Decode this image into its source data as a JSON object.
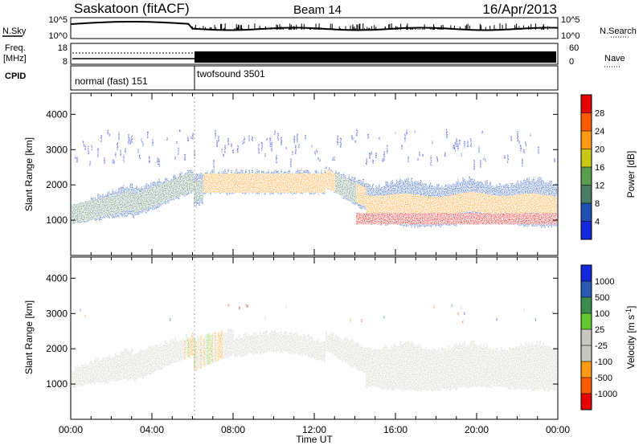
{
  "header": {
    "station": "Saskatoon (fitACF)",
    "beam": "Beam 14",
    "date": "16/Apr/2013"
  },
  "noise_panel": {
    "left_label": "N.Sky",
    "right_label": "N.Search",
    "left_ticks": [
      "10^5",
      "10^0"
    ],
    "right_ticks": [
      "10^5",
      "10^0"
    ]
  },
  "freq_panel": {
    "left_label_1": "Freq.",
    "left_label_2": "[MHz]",
    "right_label": "Nave",
    "left_ticks": [
      "18",
      "8"
    ],
    "right_ticks": [
      "60",
      "0"
    ]
  },
  "cpid_panel": {
    "label": "CPID",
    "modes": [
      {
        "name": "normal (fast) 151",
        "start_hour": 0
      },
      {
        "name": "twofsound 3501",
        "start_hour": 6
      }
    ]
  },
  "colors": {
    "power": [
      "#1428dc",
      "#1e50b4",
      "#4a7c64",
      "#5a9c50",
      "#c8c814",
      "#ff9a14",
      "#ff5a00",
      "#e60000"
    ],
    "velocity": [
      "#1428dc",
      "#2a5ab4",
      "#3c8c50",
      "#64c832",
      "#c8c8c0",
      "#c8c8c0",
      "#ff9a14",
      "#ff5a00",
      "#e60000"
    ],
    "ground_scatter": "#c8c8c0"
  },
  "chart_data": [
    {
      "type": "heatmap",
      "title": "",
      "xlabel": "Time UT",
      "ylabel": "Slant Range [km]",
      "x_ticks": [
        "00:00",
        "04:00",
        "08:00",
        "12:00",
        "16:00",
        "20:00",
        "00:00"
      ],
      "x_hours": [
        0,
        4,
        8,
        12,
        16,
        20,
        24
      ],
      "xlim": [
        0,
        24
      ],
      "y_ticks": [
        1000,
        2000,
        3000,
        4000
      ],
      "ylim": [
        0,
        4600
      ],
      "colorbar": {
        "label": "Power [dB]",
        "ticks": [
          "4",
          "8",
          "12",
          "16",
          "20",
          "24",
          "28"
        ]
      }
    },
    {
      "type": "heatmap",
      "title": "",
      "xlabel": "Time UT",
      "ylabel": "Slant Range [km]",
      "x_ticks": [
        "00:00",
        "04:00",
        "08:00",
        "12:00",
        "16:00",
        "20:00",
        "00:00"
      ],
      "xlim": [
        0,
        24
      ],
      "y_ticks": [
        1000,
        2000,
        3000,
        4000
      ],
      "ylim": [
        0,
        4600
      ],
      "colorbar": {
        "label": "Velocity [m s^-1]",
        "ticks": [
          "1000",
          "500",
          "100",
          "25",
          "-25",
          "-100",
          "-500",
          "-1000"
        ]
      }
    }
  ]
}
